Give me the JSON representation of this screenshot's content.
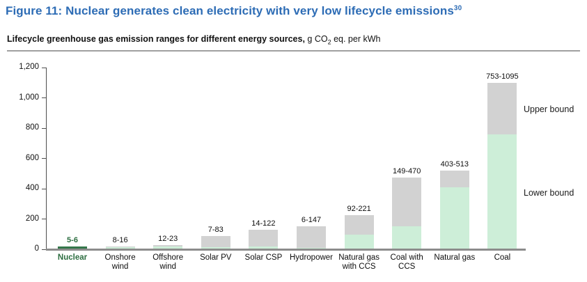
{
  "header": {
    "title": "Figure 11: Nuclear generates clean electricity with very low lifecycle emissions",
    "title_superscript": "30",
    "subtitle_bold": "Lifecycle greenhouse gas emission ranges for different energy sources,",
    "unit_prefix": " g CO",
    "unit_sub": "2",
    "unit_suffix": " eq. per kWh"
  },
  "annotations": {
    "upper": "Upper bound",
    "lower": "Lower bound"
  },
  "chart_data": {
    "type": "bar",
    "stacked": true,
    "title": "Lifecycle greenhouse gas emission ranges for different energy sources, g CO2 eq. per kWh",
    "categories": [
      "Nuclear",
      "Onshore wind",
      "Offshore wind",
      "Solar PV",
      "Solar CSP",
      "Hydropower",
      "Natural gas with CCS",
      "Coal with CCS",
      "Natural gas",
      "Coal"
    ],
    "category_label_lines": [
      [
        "Nuclear"
      ],
      [
        "Onshore",
        "wind"
      ],
      [
        "Offshore",
        "wind"
      ],
      [
        "Solar PV"
      ],
      [
        "Solar CSP"
      ],
      [
        "Hydropower"
      ],
      [
        "Natural gas",
        "with CCS"
      ],
      [
        "Coal with",
        "CCS"
      ],
      [
        "Natural gas"
      ],
      [
        "Coal"
      ]
    ],
    "series": [
      {
        "name": "Lower bound",
        "values": [
          5,
          8,
          12,
          7,
          14,
          6,
          92,
          149,
          403,
          753
        ],
        "color": "#cdeed8"
      },
      {
        "name": "Upper bound",
        "values": [
          6,
          16,
          23,
          83,
          122,
          147,
          221,
          470,
          513,
          1095
        ],
        "color": "#d2d2d2"
      }
    ],
    "bar_labels": [
      "5-6",
      "8-16",
      "12-23",
      "7-83",
      "14-122",
      "6-147",
      "92-221",
      "149-470",
      "403-513",
      "753-1095"
    ],
    "highlight": {
      "category": "Nuclear",
      "bar_color": "#34774a",
      "text_color": "#2d6e41"
    },
    "xlabel": "",
    "ylabel": "",
    "ylim": [
      0,
      1200
    ],
    "ytick_values": [
      0,
      200,
      400,
      600,
      800,
      1000,
      1200
    ],
    "yticks": [
      "0",
      "200",
      "400",
      "600",
      "800",
      "1,000",
      "1,200"
    ],
    "grid": false,
    "legend_position": "right-annotations",
    "axis_color": "#4d4d4d",
    "baseline_color": "#8c8c8c"
  }
}
